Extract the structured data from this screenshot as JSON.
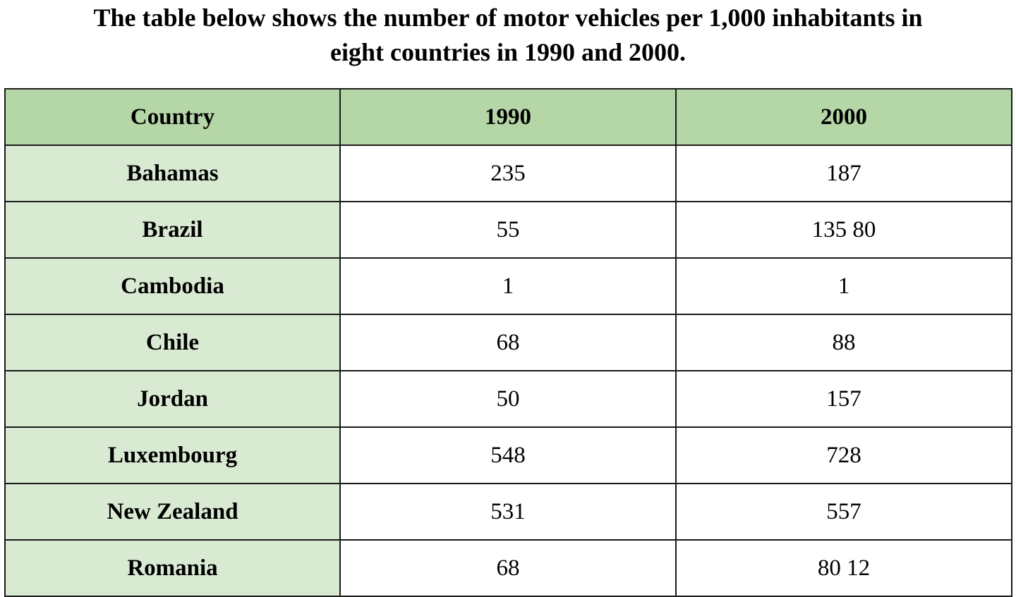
{
  "title_lines": [
    "The table below shows the number of motor vehicles per 1,000 inhabitants in",
    "eight countries in 1990 and 2000."
  ],
  "colors": {
    "header_bg": "#b5d6a7",
    "first_column_bg": "#d9ead3",
    "cell_bg": "#ffffff",
    "border": "#1a1a1a"
  },
  "chart_data": {
    "type": "table",
    "title": "The table below shows the number of motor vehicles per 1,000 inhabitants in eight countries in 1990 and 2000.",
    "columns": [
      "Country",
      "1990",
      "2000"
    ],
    "rows": [
      [
        "Bahamas",
        "235",
        "187"
      ],
      [
        "Brazil",
        "55",
        "135 80"
      ],
      [
        "Cambodia",
        "1",
        "1"
      ],
      [
        "Chile",
        "68",
        "88"
      ],
      [
        "Jordan",
        "50",
        "157"
      ],
      [
        "Luxembourg",
        "548",
        "728"
      ],
      [
        "New Zealand",
        "531",
        "557"
      ],
      [
        "Romania",
        "68",
        "80 12"
      ]
    ]
  }
}
